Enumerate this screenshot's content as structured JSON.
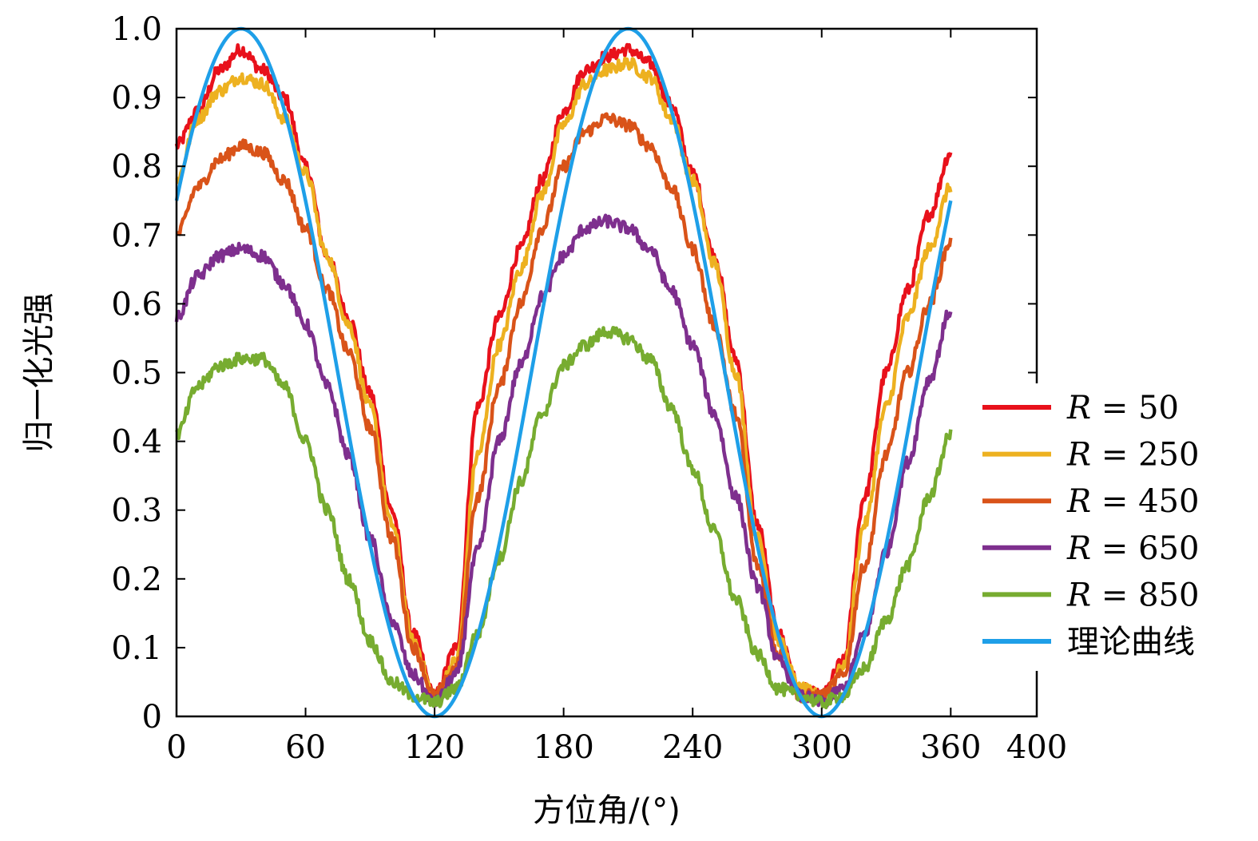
{
  "chart_data": {
    "type": "line",
    "title": "",
    "xlabel": "方位角/(°)",
    "ylabel": "归一化光强",
    "xlim": [
      0,
      400
    ],
    "ylim": [
      0,
      1.0
    ],
    "xticks": [
      0,
      60,
      120,
      180,
      240,
      300,
      360,
      400
    ],
    "xtick_labels": [
      "0",
      "60",
      "120",
      "180",
      "240",
      "300",
      "360",
      "400"
    ],
    "yticks": [
      0,
      0.1,
      0.2,
      0.3,
      0.4,
      0.5,
      0.6,
      0.7,
      0.8,
      0.9,
      1.0
    ],
    "ytick_labels": [
      "0",
      "0.1",
      "0.2",
      "0.3",
      "0.4",
      "0.5",
      "0.6",
      "0.7",
      "0.8",
      "0.9",
      "1.0"
    ],
    "grid": false,
    "legend_position": "right",
    "series": [
      {
        "name": "R = 50",
        "legend_var": "R",
        "legend_eq": "=",
        "legend_val": "50",
        "color": "#e8111b",
        "x": [
          0,
          10,
          20,
          30,
          40,
          50,
          60,
          70,
          80,
          90,
          100,
          110,
          120,
          130,
          140,
          150,
          160,
          170,
          180,
          190,
          200,
          210,
          220,
          230,
          240,
          250,
          260,
          270,
          280,
          290,
          300,
          310,
          320,
          330,
          340,
          350,
          360
        ],
        "y": [
          0.83,
          0.88,
          0.94,
          0.97,
          0.94,
          0.9,
          0.8,
          0.67,
          0.58,
          0.47,
          0.3,
          0.12,
          0.03,
          0.1,
          0.45,
          0.58,
          0.68,
          0.78,
          0.88,
          0.94,
          0.96,
          0.97,
          0.95,
          0.89,
          0.79,
          0.67,
          0.52,
          0.28,
          0.12,
          0.04,
          0.03,
          0.08,
          0.32,
          0.5,
          0.62,
          0.73,
          0.82
        ]
      },
      {
        "name": "R = 250",
        "legend_var": "R",
        "legend_eq": "=",
        "legend_val": "250",
        "color": "#edb120",
        "x": [
          0,
          10,
          20,
          30,
          40,
          50,
          60,
          70,
          80,
          90,
          100,
          110,
          120,
          130,
          140,
          150,
          160,
          170,
          180,
          190,
          200,
          210,
          220,
          230,
          240,
          250,
          260,
          270,
          280,
          290,
          300,
          310,
          320,
          330,
          340,
          350,
          360
        ],
        "y": [
          0.78,
          0.87,
          0.91,
          0.93,
          0.92,
          0.87,
          0.79,
          0.67,
          0.57,
          0.45,
          0.28,
          0.11,
          0.03,
          0.08,
          0.38,
          0.54,
          0.65,
          0.76,
          0.86,
          0.92,
          0.94,
          0.95,
          0.93,
          0.87,
          0.78,
          0.66,
          0.5,
          0.26,
          0.11,
          0.04,
          0.03,
          0.07,
          0.28,
          0.45,
          0.58,
          0.68,
          0.77
        ]
      },
      {
        "name": "R = 450",
        "legend_var": "R",
        "legend_eq": "=",
        "legend_val": "450",
        "color": "#d95319",
        "x": [
          0,
          10,
          20,
          30,
          40,
          50,
          60,
          70,
          80,
          90,
          100,
          110,
          120,
          130,
          140,
          150,
          160,
          170,
          180,
          190,
          200,
          210,
          220,
          230,
          240,
          250,
          260,
          270,
          280,
          290,
          300,
          310,
          320,
          330,
          340,
          350,
          360
        ],
        "y": [
          0.7,
          0.77,
          0.81,
          0.83,
          0.82,
          0.78,
          0.71,
          0.62,
          0.53,
          0.42,
          0.26,
          0.1,
          0.03,
          0.07,
          0.32,
          0.48,
          0.6,
          0.71,
          0.8,
          0.85,
          0.87,
          0.86,
          0.83,
          0.77,
          0.68,
          0.57,
          0.44,
          0.22,
          0.09,
          0.03,
          0.03,
          0.06,
          0.22,
          0.38,
          0.5,
          0.6,
          0.69
        ]
      },
      {
        "name": "R = 650",
        "legend_var": "R",
        "legend_eq": "=",
        "legend_val": "650",
        "color": "#7e2f8e",
        "x": [
          0,
          10,
          20,
          30,
          40,
          50,
          60,
          70,
          80,
          90,
          100,
          110,
          120,
          130,
          140,
          150,
          160,
          170,
          180,
          190,
          200,
          210,
          220,
          230,
          240,
          250,
          260,
          270,
          280,
          290,
          300,
          310,
          320,
          330,
          340,
          350,
          360
        ],
        "y": [
          0.58,
          0.64,
          0.67,
          0.68,
          0.67,
          0.63,
          0.57,
          0.48,
          0.38,
          0.26,
          0.14,
          0.06,
          0.02,
          0.06,
          0.24,
          0.4,
          0.51,
          0.61,
          0.67,
          0.71,
          0.72,
          0.71,
          0.68,
          0.62,
          0.54,
          0.44,
          0.32,
          0.19,
          0.08,
          0.03,
          0.02,
          0.04,
          0.12,
          0.24,
          0.37,
          0.49,
          0.59
        ]
      },
      {
        "name": "R = 850",
        "legend_var": "R",
        "legend_eq": "=",
        "legend_val": "850",
        "color": "#77ac30",
        "x": [
          0,
          10,
          20,
          30,
          40,
          50,
          60,
          70,
          80,
          90,
          100,
          110,
          120,
          130,
          140,
          150,
          160,
          170,
          180,
          190,
          200,
          210,
          220,
          230,
          240,
          250,
          260,
          270,
          280,
          290,
          300,
          310,
          320,
          330,
          340,
          350,
          360
        ],
        "y": [
          0.41,
          0.48,
          0.51,
          0.52,
          0.52,
          0.48,
          0.4,
          0.3,
          0.2,
          0.11,
          0.05,
          0.03,
          0.02,
          0.04,
          0.12,
          0.23,
          0.34,
          0.44,
          0.51,
          0.54,
          0.56,
          0.55,
          0.52,
          0.45,
          0.36,
          0.27,
          0.17,
          0.09,
          0.04,
          0.03,
          0.02,
          0.03,
          0.07,
          0.14,
          0.22,
          0.32,
          0.41
        ]
      },
      {
        "name": "理论曲线",
        "legend_label": "理论曲线",
        "color": "#1e9fe8",
        "function": "cos^2(theta - 30)",
        "x_range": [
          0,
          360
        ],
        "peaks": [
          [
            30,
            1.0
          ],
          [
            210,
            1.0
          ]
        ],
        "minima": [
          [
            120,
            0.0
          ],
          [
            300,
            0.0
          ]
        ]
      }
    ]
  }
}
